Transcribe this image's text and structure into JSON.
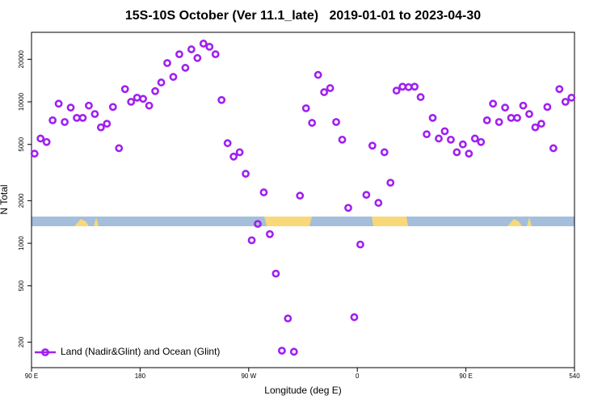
{
  "chart_data": {
    "type": "scatter",
    "title": "15S-10S October (Ver 11.1_late)   2019-01-01 to 2023-04-30",
    "xlabel": "Longitude (deg E)",
    "ylabel": "N Total",
    "x": [
      92.5,
      97.5,
      102.5,
      107.5,
      112.5,
      117.5,
      122.5,
      127.5,
      132.5,
      137.5,
      142.5,
      147.5,
      152.5,
      157.5,
      162.5,
      167.5,
      172.5,
      177.5,
      182.5,
      187.5,
      192.5,
      197.5,
      202.5,
      207.5,
      212.5,
      217.5,
      222.5,
      227.5,
      232.5,
      237.5,
      242.5,
      247.5,
      252.5,
      257.5,
      262.5,
      267.5,
      272.5,
      277.5,
      282.5,
      287.5,
      292.5,
      297.5,
      302.5,
      307.5,
      312.5,
      317.5,
      322.5,
      327.5,
      332.5,
      337.5,
      342.5,
      347.5,
      352.5,
      357.5,
      362.5,
      367.5,
      372.5,
      377.5,
      382.5,
      387.5,
      392.5,
      397.5,
      402.5,
      407.5,
      412.5,
      417.5,
      422.5,
      427.5,
      432.5,
      437.5,
      442.5,
      447.5,
      452.5,
      457.5,
      462.5,
      467.5,
      472.5,
      477.5,
      482.5,
      487.5,
      492.5,
      497.5,
      502.5,
      507.5,
      512.5,
      517.5,
      522.5,
      527.5,
      532.5,
      537.5
    ],
    "series": [
      {
        "name": "Land (Nadir&Glint) and Ocean (Glint)",
        "color": "#a020f0",
        "values": [
          4300,
          5500,
          5200,
          7400,
          9700,
          7200,
          9100,
          7700,
          7700,
          9400,
          8200,
          6600,
          7000,
          9200,
          4700,
          12300,
          10000,
          10700,
          10500,
          9400,
          11900,
          13700,
          18800,
          15000,
          21700,
          17400,
          23500,
          20400,
          25800,
          24500,
          21700,
          10300,
          5100,
          4100,
          4400,
          3100,
          1050,
          1370,
          2290,
          1160,
          610,
          174,
          294,
          171,
          2170,
          9000,
          7100,
          15500,
          11700,
          12500,
          7200,
          5400,
          1780,
          300,
          980,
          2200,
          4900,
          1930,
          4400,
          2680,
          12000,
          12800,
          12700,
          12800,
          10800,
          5900,
          7700,
          5500,
          6200,
          5400,
          4400,
          5000,
          4300,
          5500,
          5200,
          7400,
          9700,
          7200,
          9100,
          7700,
          7700,
          9400,
          8200,
          6600,
          7000,
          9200,
          4700,
          12300,
          10000,
          10700
        ]
      }
    ],
    "xlim": [
      90,
      540
    ],
    "xticks": [
      {
        "value": 90,
        "label": "90 E"
      },
      180,
      {
        "value": 270,
        "label": "90 W"
      },
      {
        "value": 360,
        "label": "0"
      },
      {
        "value": 450,
        "label": "90 E"
      },
      540
    ],
    "ylim": [
      132,
      31000
    ],
    "yticks": [
      200,
      500,
      1000,
      2000,
      5000,
      10000,
      20000
    ],
    "yscale": "log",
    "legend": "lower left"
  }
}
